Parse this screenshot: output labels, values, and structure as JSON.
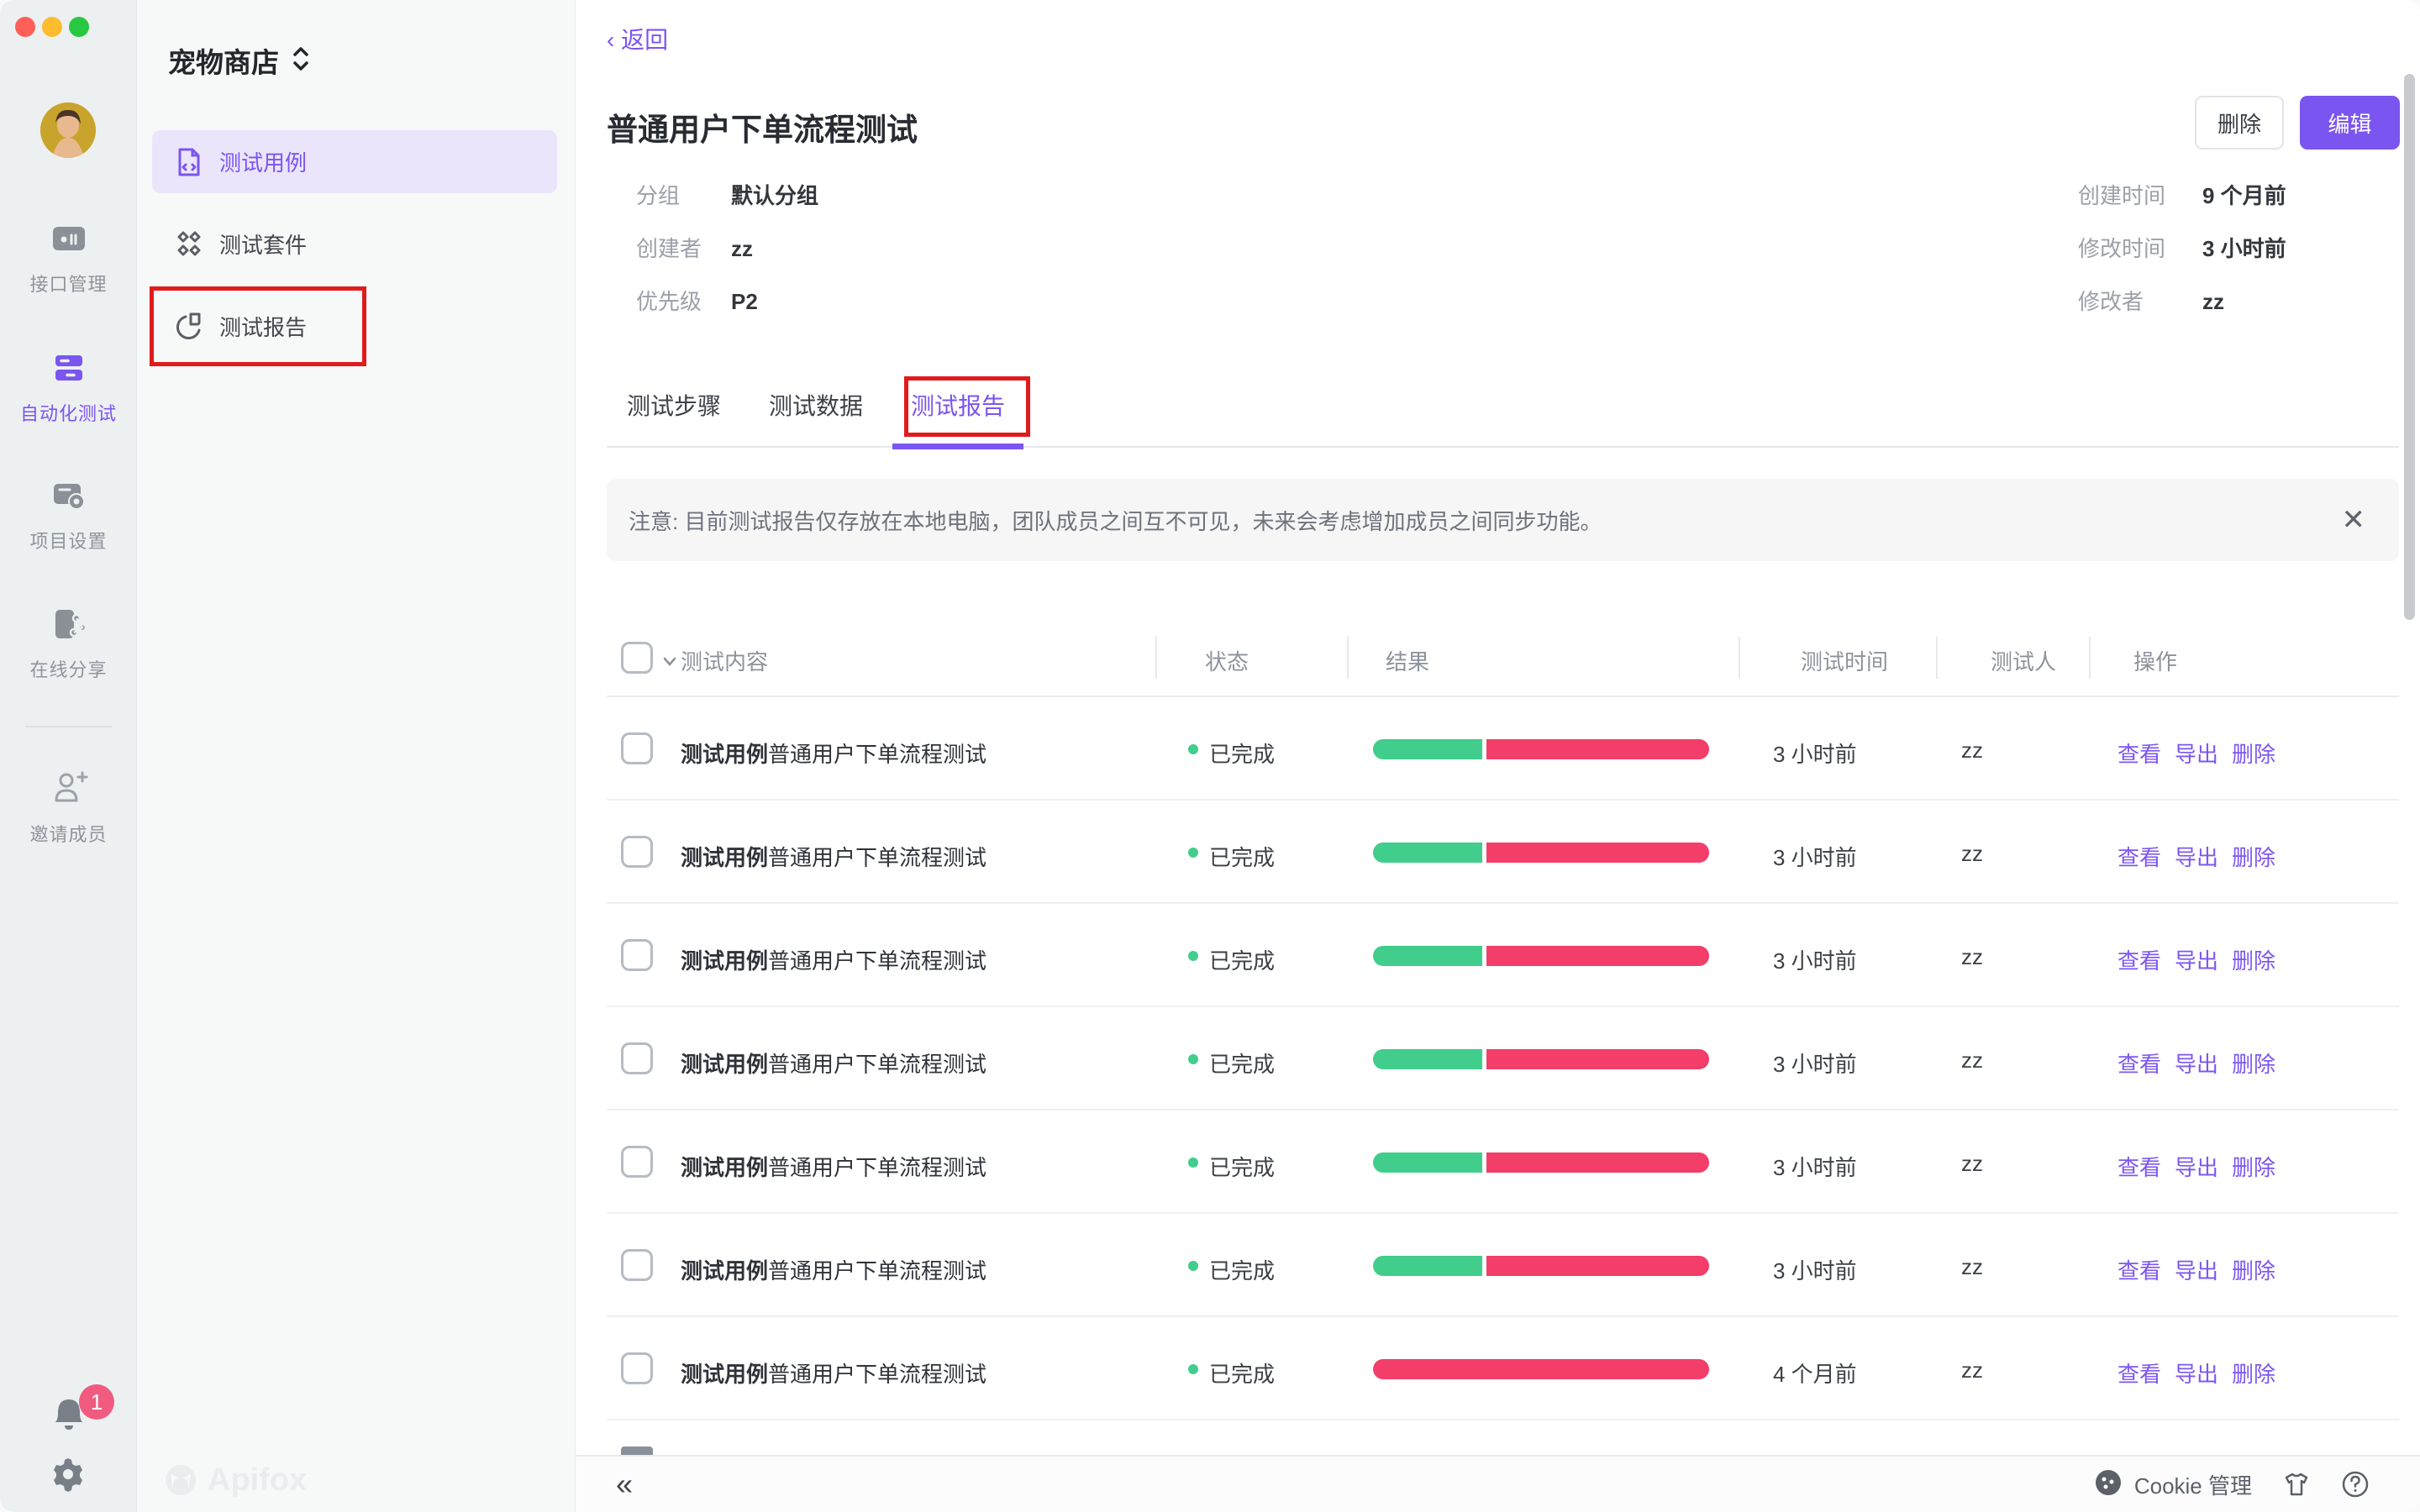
{
  "colors": {
    "accent": "#7B55EF",
    "pass_green": "#41CD8C",
    "fail_red": "#F23E68",
    "annotation_red": "#E01B1B"
  },
  "window": {
    "traffic_lights": [
      "close",
      "minimize",
      "zoom"
    ]
  },
  "rail": {
    "items": [
      {
        "label": "接口管理",
        "icon": "api-management-icon",
        "active": false
      },
      {
        "label": "自动化测试",
        "icon": "automation-test-icon",
        "active": true
      },
      {
        "label": "项目设置",
        "icon": "project-settings-icon",
        "active": false
      },
      {
        "label": "在线分享",
        "icon": "online-share-icon",
        "active": false
      }
    ],
    "invite_label": "邀请成员",
    "notification_count": "1"
  },
  "sidebar": {
    "project_name": "宠物商店",
    "items": [
      {
        "label": "测试用例",
        "active": true
      },
      {
        "label": "测试套件",
        "active": false
      },
      {
        "label": "测试报告",
        "active": false,
        "annotated": true
      }
    ],
    "watermark": "Apifox"
  },
  "page": {
    "back_label": "返回",
    "title": "普通用户下单流程测试",
    "buttons": {
      "delete": "删除",
      "edit": "编辑"
    }
  },
  "meta": {
    "left": [
      {
        "label": "分组",
        "value": "默认分组"
      },
      {
        "label": "创建者",
        "value": "zz"
      },
      {
        "label": "优先级",
        "value": "P2"
      }
    ],
    "right": [
      {
        "label": "创建时间",
        "value": "9 个月前"
      },
      {
        "label": "修改时间",
        "value": "3 小时前"
      },
      {
        "label": "修改者",
        "value": "zz"
      }
    ]
  },
  "tabs": [
    {
      "label": "测试步骤",
      "active": false
    },
    {
      "label": "测试数据",
      "active": false
    },
    {
      "label": "测试报告",
      "active": true,
      "annotated": true
    }
  ],
  "notice": {
    "text": "注意: 目前测试报告仅存放在本地电脑，团队成员之间互不可见，未来会考虑增加成员之间同步功能。"
  },
  "table": {
    "columns": [
      "测试内容",
      "状态",
      "结果",
      "测试时间",
      "测试人",
      "操作"
    ],
    "rows": [
      {
        "title_bold": "测试用例",
        "title_rest": "普通用户下单流程测试",
        "status": "已完成",
        "pass_pct": 33,
        "fail_pct": 67,
        "time": "3 小时前",
        "tester": "zz",
        "actions": [
          "查看",
          "导出",
          "删除"
        ]
      },
      {
        "title_bold": "测试用例",
        "title_rest": "普通用户下单流程测试",
        "status": "已完成",
        "pass_pct": 33,
        "fail_pct": 67,
        "time": "3 小时前",
        "tester": "zz",
        "actions": [
          "查看",
          "导出",
          "删除"
        ]
      },
      {
        "title_bold": "测试用例",
        "title_rest": "普通用户下单流程测试",
        "status": "已完成",
        "pass_pct": 33,
        "fail_pct": 67,
        "time": "3 小时前",
        "tester": "zz",
        "actions": [
          "查看",
          "导出",
          "删除"
        ]
      },
      {
        "title_bold": "测试用例",
        "title_rest": "普通用户下单流程测试",
        "status": "已完成",
        "pass_pct": 33,
        "fail_pct": 67,
        "time": "3 小时前",
        "tester": "zz",
        "actions": [
          "查看",
          "导出",
          "删除"
        ]
      },
      {
        "title_bold": "测试用例",
        "title_rest": "普通用户下单流程测试",
        "status": "已完成",
        "pass_pct": 33,
        "fail_pct": 67,
        "time": "3 小时前",
        "tester": "zz",
        "actions": [
          "查看",
          "导出",
          "删除"
        ]
      },
      {
        "title_bold": "测试用例",
        "title_rest": "普通用户下单流程测试",
        "status": "已完成",
        "pass_pct": 33,
        "fail_pct": 67,
        "time": "3 小时前",
        "tester": "zz",
        "actions": [
          "查看",
          "导出",
          "删除"
        ]
      },
      {
        "title_bold": "测试用例",
        "title_rest": "普通用户下单流程测试",
        "status": "已完成",
        "pass_pct": 0,
        "fail_pct": 100,
        "time": "4 个月前",
        "tester": "zz",
        "actions": [
          "查看",
          "导出",
          "删除"
        ]
      }
    ]
  },
  "footer": {
    "cookie_label": "Cookie 管理"
  }
}
